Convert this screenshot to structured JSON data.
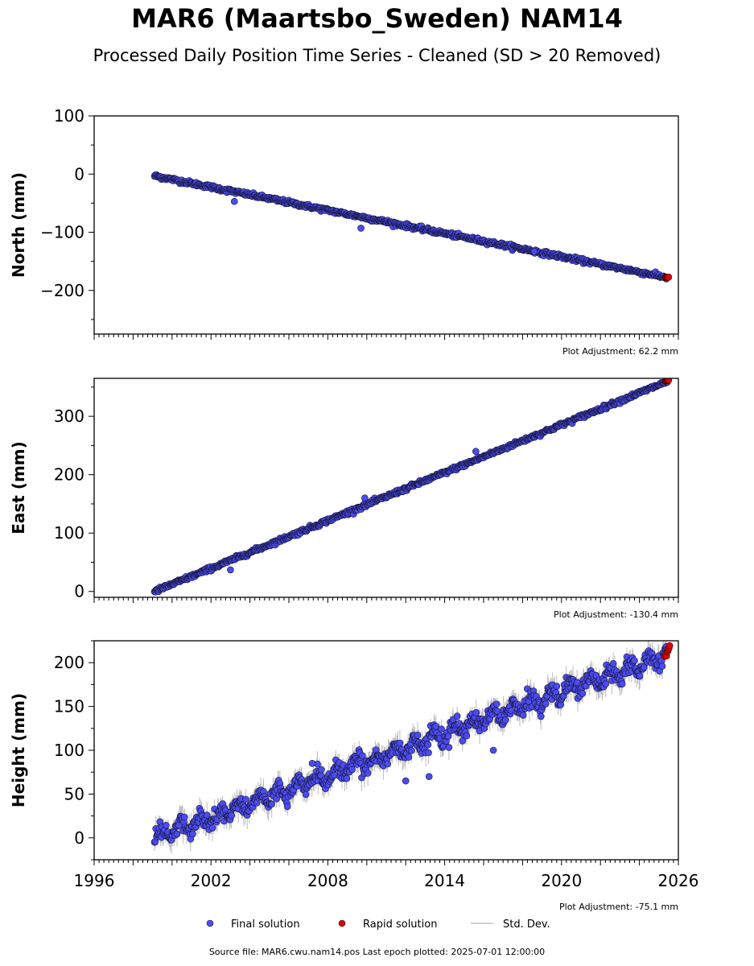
{
  "header": {
    "title": "MAR6 (Maartsbo_Sweden) NAM14",
    "subtitle": "Processed Daily Position Time Series - Cleaned (SD > 20 Removed)"
  },
  "footer": {
    "source_note": "Source file: MAR6.cwu.nam14.pos  Last epoch plotted: 2025-07-01 12:00:00"
  },
  "colors": {
    "final": "#4b4bf0",
    "final_edge": "#141432",
    "rapid": "#e00000",
    "std_dev": "#b4b4b4"
  },
  "chart_data": [
    {
      "type": "scatter",
      "ylabel": "North (mm)",
      "xlim": [
        1996,
        2026
      ],
      "ylim": [
        -275,
        100
      ],
      "yticks": [
        100,
        0,
        -100,
        -200
      ],
      "ytick_labels": [
        "100",
        "0",
        "−100",
        "−200"
      ],
      "adjustment_note": "Plot Adjustment: 62.2 mm",
      "trend": {
        "x": [
          1999.1,
          2025.45
        ],
        "y": [
          -3,
          -178
        ]
      },
      "noise": 2.5,
      "outliers": [
        [
          2003.2,
          -47
        ],
        [
          2009.7,
          -93
        ],
        [
          2018.6,
          -133
        ]
      ],
      "rapid": {
        "x": [
          2025.35,
          2025.5
        ],
        "y": [
          -178,
          -177
        ]
      }
    },
    {
      "type": "scatter",
      "ylabel": "East (mm)",
      "xlim": [
        1996,
        2026
      ],
      "ylim": [
        -10,
        365
      ],
      "yticks": [
        300,
        200,
        100,
        0
      ],
      "ytick_labels": [
        "300",
        "200",
        "100",
        "0"
      ],
      "adjustment_note": "Plot Adjustment: -130.4 mm",
      "trend": {
        "x": [
          1999.1,
          2025.45
        ],
        "y": [
          0,
          360
        ]
      },
      "noise": 2.5,
      "outliers": [
        [
          2003.0,
          37
        ],
        [
          2015.6,
          240
        ],
        [
          2009.9,
          160
        ]
      ],
      "rapid": {
        "x": [
          2025.35,
          2025.5
        ],
        "y": [
          360,
          362
        ]
      }
    },
    {
      "type": "scatter",
      "ylabel": "Height (mm)",
      "xlim": [
        1996,
        2026
      ],
      "ylim": [
        -25,
        225
      ],
      "yticks": [
        200,
        150,
        100,
        50,
        0
      ],
      "ytick_labels": [
        "200",
        "150",
        "100",
        "50",
        "0"
      ],
      "adjustment_note": "Plot Adjustment: -75.1 mm",
      "xtick_labels": [
        "1996",
        "2002",
        "2008",
        "2014",
        "2020",
        "2026"
      ],
      "trend": {
        "x": [
          1999.1,
          2025.45
        ],
        "y": [
          0,
          210
        ]
      },
      "noise": 8,
      "outliers": [
        [
          2012.0,
          65
        ],
        [
          2013.2,
          70
        ],
        [
          2016.5,
          100
        ],
        [
          2007.2,
          85
        ]
      ],
      "rapid": {
        "x": [
          2025.3,
          2025.55
        ],
        "y": [
          205,
          217
        ]
      }
    }
  ],
  "legend": {
    "items": [
      {
        "label": "Final solution",
        "marker": "dot",
        "color": "#4b4bf0"
      },
      {
        "label": "Rapid solution",
        "marker": "dot",
        "color": "#e00000"
      },
      {
        "label": "Std. Dev.",
        "marker": "line",
        "color": "#b4b4b4"
      }
    ]
  }
}
